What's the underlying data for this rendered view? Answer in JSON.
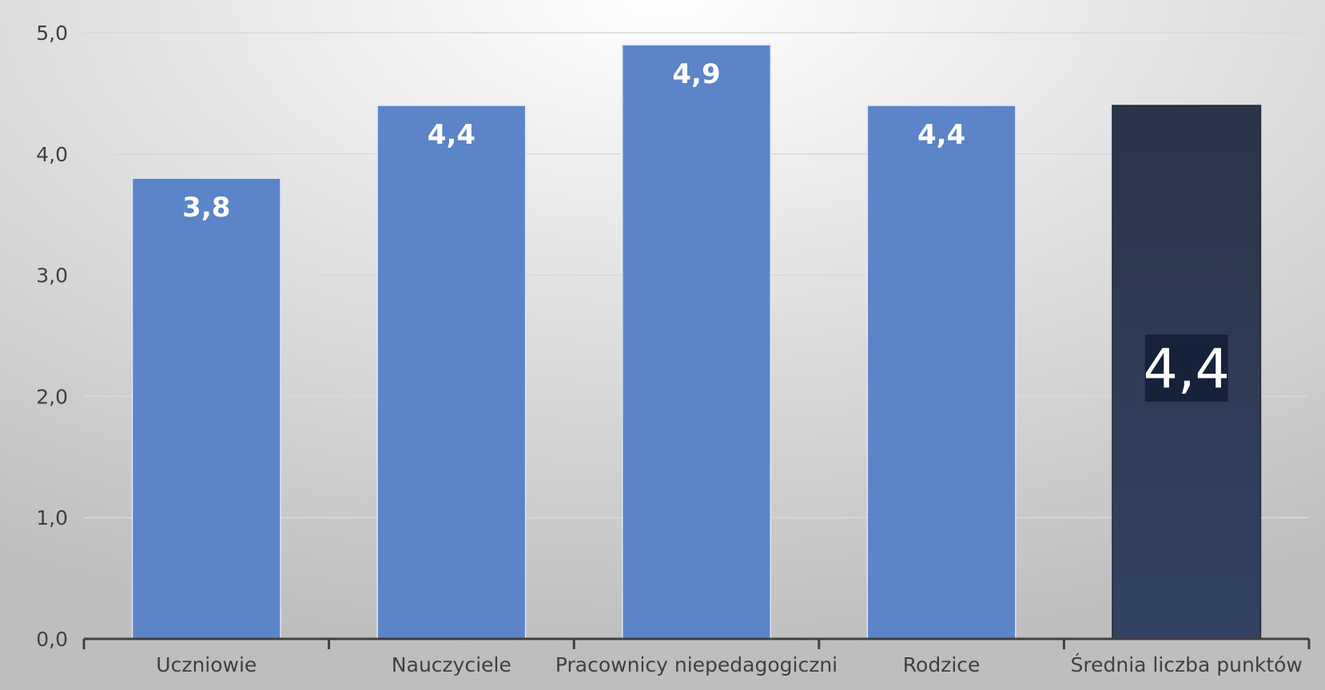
{
  "chart_data": {
    "type": "bar",
    "categories": [
      "Uczniowie",
      "Nauczyciele",
      "Pracownicy niepedagogiczni",
      "Rodzice",
      "Średnia liczba punktów"
    ],
    "values": [
      3.8,
      4.4,
      4.9,
      4.4,
      4.4
    ],
    "data_labels": [
      "3,8",
      "4,4",
      "4,9",
      "4,4",
      "4,4"
    ],
    "y_ticks": [
      "0,0",
      "1,0",
      "2,0",
      "3,0",
      "4,0",
      "5,0"
    ],
    "y_tick_values": [
      0,
      1,
      2,
      3,
      4,
      5
    ],
    "ylim": [
      0,
      5
    ],
    "grid": true,
    "legend": "none",
    "colors": {
      "bar": "#5B84C9",
      "highlight_bar": "#2E3A55",
      "highlight_label_bg": "#16213A",
      "background_center": "#FFFFFF",
      "background_edge": "#BEBEBE",
      "axis": "#404040",
      "gridline": "#D9D9D9"
    },
    "highlight_index": 4
  }
}
